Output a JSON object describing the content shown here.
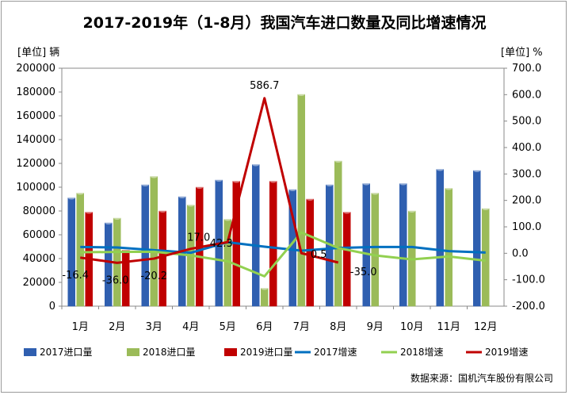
{
  "chart_data": {
    "type": "bar+line",
    "title": "2017-2019年（1-8月）我国汽车进口数量及同比增速情况",
    "y_left_unit": "[单位] 辆",
    "y_right_unit": "[单位] %",
    "ylim_left": [
      0,
      200000
    ],
    "ylim_right": [
      -200,
      700
    ],
    "y_left_ticks": [
      "0",
      "20000",
      "40000",
      "60000",
      "80000",
      "100000",
      "120000",
      "140000",
      "160000",
      "180000",
      "200000"
    ],
    "y_right_ticks": [
      "-200.0",
      "-100.0",
      "0.0",
      "100.0",
      "200.0",
      "300.0",
      "400.0",
      "500.0",
      "600.0",
      "700.0"
    ],
    "categories": [
      "1月",
      "2月",
      "3月",
      "4月",
      "5月",
      "6月",
      "7月",
      "8月",
      "9月",
      "10月",
      "11月",
      "12月"
    ],
    "bar_series": [
      {
        "name": "2017进口量",
        "color": "#2f5fb0",
        "values": [
          91000,
          70000,
          102000,
          92000,
          106000,
          119000,
          98000,
          102000,
          103000,
          103000,
          115000,
          114000
        ]
      },
      {
        "name": "2018进口量",
        "color": "#9bbb59",
        "values": [
          95000,
          74000,
          109000,
          85000,
          73000,
          15000,
          178000,
          122000,
          95000,
          80000,
          99000,
          82000
        ]
      },
      {
        "name": "2019进口量",
        "color": "#c00000",
        "values": [
          79000,
          47000,
          80000,
          100000,
          105000,
          105000,
          90000,
          79000,
          null,
          null,
          null,
          null
        ]
      }
    ],
    "line_series": [
      {
        "name": "2017增速",
        "color": "#0070c0",
        "values": [
          24,
          22,
          12,
          2,
          42,
          25,
          10,
          20,
          24,
          24,
          8,
          3
        ]
      },
      {
        "name": "2018增速",
        "color": "#92d050",
        "values": [
          4,
          5,
          6,
          -8,
          -30,
          -87,
          79,
          20,
          -8,
          -23,
          -12,
          -28
        ]
      },
      {
        "name": "2019增速",
        "color": "#c00000",
        "values": [
          -16.4,
          -36.0,
          -20.2,
          17.0,
          42.3,
          586.7,
          0.5,
          -35.0,
          null,
          null,
          null,
          null
        ]
      }
    ],
    "data_labels": [
      "-16.4",
      "-36.0",
      "-20.2",
      "17.0",
      "42.3",
      "586.7",
      "0.5",
      "-35.0"
    ],
    "legend": "bottom",
    "grid": true
  },
  "source": "数据来源：国机汽车股份有限公司"
}
